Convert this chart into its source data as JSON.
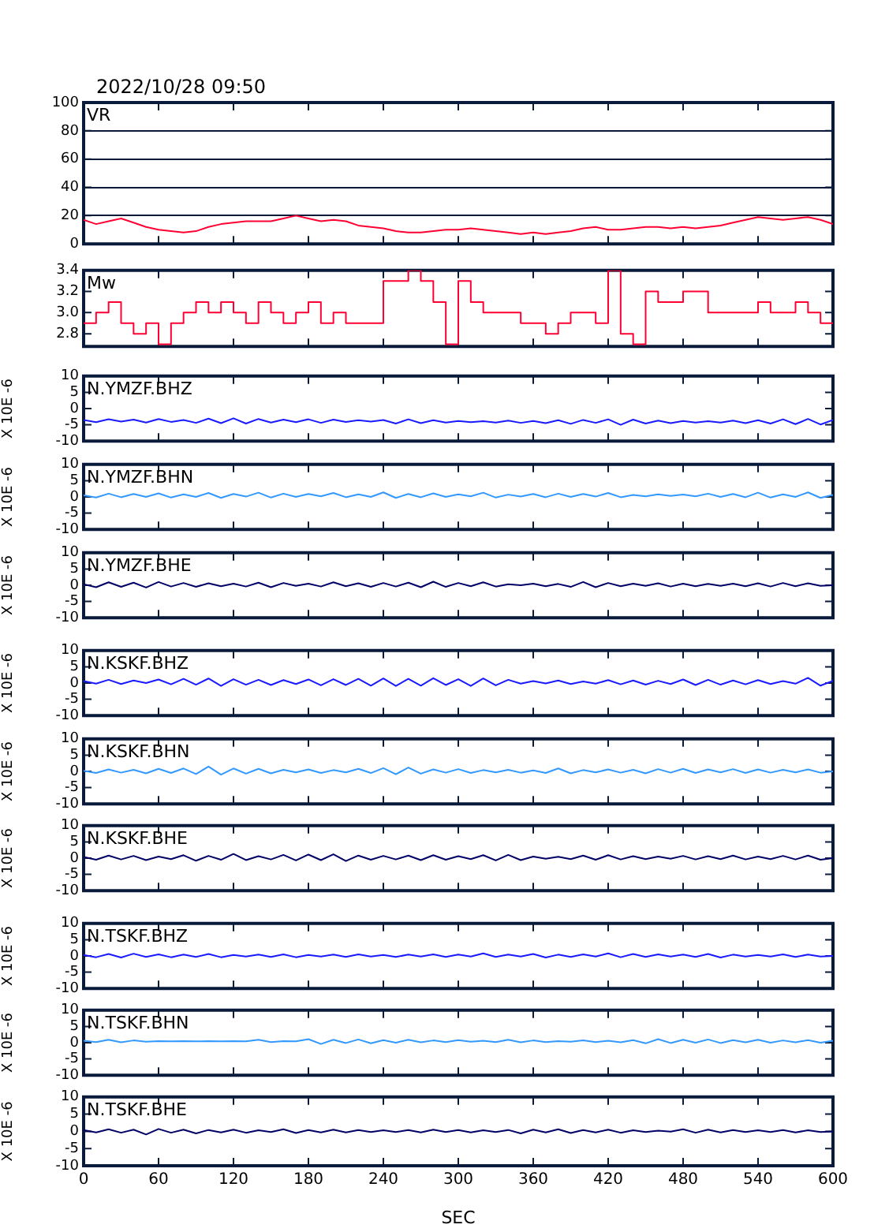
{
  "chart_data": [
    {
      "type": "line",
      "title": "VR",
      "annotations": [
        "2022/10/28 09:50"
      ],
      "x": [
        0,
        10,
        20,
        30,
        40,
        50,
        60,
        70,
        80,
        90,
        100,
        110,
        120,
        130,
        140,
        150,
        160,
        170,
        180,
        190,
        200,
        210,
        220,
        230,
        240,
        250,
        260,
        270,
        280,
        290,
        300,
        310,
        320,
        330,
        340,
        350,
        360,
        370,
        380,
        390,
        400,
        410,
        420,
        430,
        440,
        450,
        460,
        470,
        480,
        490,
        500,
        510,
        520,
        530,
        540,
        550,
        560,
        570,
        580,
        590,
        600
      ],
      "values": [
        17,
        14,
        16,
        18,
        15,
        12,
        10,
        9,
        8,
        9,
        12,
        14,
        15,
        16,
        16,
        16,
        18,
        20,
        18,
        16,
        17,
        16,
        13,
        12,
        11,
        9,
        8,
        8,
        9,
        10,
        10,
        11,
        10,
        9,
        8,
        7,
        8,
        7,
        8,
        9,
        11,
        12,
        10,
        10,
        11,
        12,
        12,
        11,
        12,
        11,
        12,
        13,
        15,
        17,
        19,
        18,
        17,
        18,
        19,
        17,
        14
      ],
      "color": "#ff0033",
      "xlim": [
        0,
        600
      ],
      "xticks": [
        0,
        60,
        120,
        180,
        240,
        300,
        360,
        420,
        480,
        540,
        600
      ],
      "ylim": [
        0,
        100
      ],
      "yticks": [
        0,
        20,
        40,
        60,
        80,
        100
      ],
      "grid": "y",
      "tick_labels": "y"
    },
    {
      "type": "step",
      "title": "Mw",
      "x": [
        0,
        10,
        20,
        30,
        40,
        50,
        60,
        70,
        80,
        90,
        100,
        110,
        120,
        130,
        140,
        150,
        160,
        170,
        180,
        190,
        200,
        210,
        220,
        230,
        240,
        250,
        260,
        270,
        280,
        290,
        300,
        310,
        320,
        330,
        340,
        350,
        360,
        370,
        380,
        390,
        400,
        410,
        420,
        430,
        440,
        450,
        460,
        470,
        480,
        490,
        500,
        510,
        520,
        530,
        540,
        550,
        560,
        570,
        580,
        590,
        600
      ],
      "values": [
        2.9,
        3.0,
        3.1,
        2.9,
        2.8,
        2.9,
        2.7,
        2.9,
        3.0,
        3.1,
        3.0,
        3.1,
        3.0,
        2.9,
        3.1,
        3.0,
        2.9,
        3.0,
        3.1,
        2.9,
        3.0,
        2.9,
        2.9,
        2.9,
        3.3,
        3.3,
        3.4,
        3.3,
        3.1,
        2.7,
        3.3,
        3.1,
        3.0,
        3.0,
        3.0,
        2.9,
        2.9,
        2.8,
        2.9,
        3.0,
        3.0,
        2.9,
        3.4,
        2.8,
        2.7,
        3.2,
        3.1,
        3.1,
        3.2,
        3.2,
        3.0,
        3.0,
        3.0,
        3.0,
        3.1,
        3.0,
        3.0,
        3.1,
        3.0,
        2.9,
        2.9
      ],
      "color": "#ff0033",
      "xlim": [
        0,
        600
      ],
      "xticks": [
        0,
        60,
        120,
        180,
        240,
        300,
        360,
        420,
        480,
        540,
        600
      ],
      "ylim": [
        2.68,
        3.4
      ],
      "yticks": [
        2.8,
        {
          "value": 3,
          "label": "3.0"
        },
        3.2,
        3.4
      ],
      "tick_labels": "y"
    },
    {
      "type": "line",
      "title": "N.YMZF.BHZ",
      "ylabel": "X 10E -6",
      "x": [
        0,
        10,
        20,
        30,
        40,
        50,
        60,
        70,
        80,
        90,
        100,
        110,
        120,
        130,
        140,
        150,
        160,
        170,
        180,
        190,
        200,
        210,
        220,
        230,
        240,
        250,
        260,
        270,
        280,
        290,
        300,
        310,
        320,
        330,
        340,
        350,
        360,
        370,
        380,
        390,
        400,
        410,
        420,
        430,
        440,
        450,
        460,
        470,
        480,
        490,
        500,
        510,
        520,
        530,
        540,
        550,
        560,
        570,
        580,
        590,
        600
      ],
      "values": [
        -3.5,
        -4.2,
        -3.3,
        -4.0,
        -3.4,
        -4.3,
        -3.2,
        -4.1,
        -3.5,
        -4.4,
        -3.1,
        -4.5,
        -3.0,
        -4.6,
        -3.2,
        -4.3,
        -3.4,
        -4.2,
        -3.3,
        -4.4,
        -3.4,
        -4.1,
        -3.6,
        -4.0,
        -3.5,
        -4.6,
        -3.3,
        -4.5,
        -3.6,
        -4.3,
        -3.8,
        -4.2,
        -3.9,
        -4.3,
        -3.7,
        -4.4,
        -3.8,
        -4.5,
        -3.6,
        -4.7,
        -3.5,
        -4.4,
        -3.3,
        -5.0,
        -3.4,
        -4.6,
        -3.7,
        -4.5,
        -3.8,
        -4.3,
        -3.9,
        -4.3,
        -3.7,
        -4.5,
        -3.6,
        -4.6,
        -3.3,
        -4.8,
        -3.2,
        -4.9,
        -3.5
      ],
      "color": "#1a1aff",
      "xlim": [
        0,
        600
      ],
      "xticks": [
        0,
        60,
        120,
        180,
        240,
        300,
        360,
        420,
        480,
        540,
        600
      ],
      "ylim": [
        -10,
        10
      ],
      "yticks": [
        -10,
        -5,
        0,
        5,
        10
      ],
      "tick_labels": "y"
    },
    {
      "type": "line",
      "title": "N.YMZF.BHN",
      "ylabel": "X 10E -6",
      "x": [
        0,
        10,
        20,
        30,
        40,
        50,
        60,
        70,
        80,
        90,
        100,
        110,
        120,
        130,
        140,
        150,
        160,
        170,
        180,
        190,
        200,
        210,
        220,
        230,
        240,
        250,
        260,
        270,
        280,
        290,
        300,
        310,
        320,
        330,
        340,
        350,
        360,
        370,
        380,
        390,
        400,
        410,
        420,
        430,
        440,
        450,
        460,
        470,
        480,
        490,
        500,
        510,
        520,
        530,
        540,
        550,
        560,
        570,
        580,
        590,
        600
      ],
      "values": [
        0.5,
        -0.2,
        1.0,
        -0.1,
        0.9,
        0.0,
        1.1,
        -0.2,
        0.8,
        0.0,
        1.2,
        -0.3,
        0.9,
        0.1,
        1.3,
        -0.2,
        1.0,
        0.0,
        0.9,
        0.2,
        1.2,
        -0.1,
        0.8,
        0.0,
        1.4,
        -0.3,
        0.9,
        -0.1,
        1.1,
        0.0,
        0.8,
        0.2,
        1.3,
        -0.2,
        0.7,
        0.1,
        0.9,
        -0.1,
        1.0,
        0.0,
        0.9,
        0.1,
        1.2,
        -0.1,
        0.6,
        0.2,
        0.8,
        0.3,
        0.7,
        0.2,
        1.0,
        0.0,
        0.9,
        -0.1,
        1.3,
        -0.2,
        0.8,
        0.0,
        1.4,
        -0.3,
        0.6
      ],
      "color": "#3399ff",
      "xlim": [
        0,
        600
      ],
      "xticks": [
        0,
        60,
        120,
        180,
        240,
        300,
        360,
        420,
        480,
        540,
        600
      ],
      "ylim": [
        -10,
        10
      ],
      "yticks": [
        -10,
        -5,
        0,
        5,
        10
      ],
      "tick_labels": "y"
    },
    {
      "type": "line",
      "title": "N.YMZF.BHE",
      "ylabel": "X 10E -6",
      "x": [
        0,
        10,
        20,
        30,
        40,
        50,
        60,
        70,
        80,
        90,
        100,
        110,
        120,
        130,
        140,
        150,
        160,
        170,
        180,
        190,
        200,
        210,
        220,
        230,
        240,
        250,
        260,
        270,
        280,
        290,
        300,
        310,
        320,
        330,
        340,
        350,
        360,
        370,
        380,
        390,
        400,
        410,
        420,
        430,
        440,
        450,
        460,
        470,
        480,
        490,
        500,
        510,
        520,
        530,
        540,
        550,
        560,
        570,
        580,
        590,
        600
      ],
      "values": [
        0.3,
        -0.6,
        0.9,
        -0.5,
        0.8,
        -0.7,
        1.0,
        -0.4,
        0.7,
        -0.5,
        0.6,
        -0.3,
        0.5,
        -0.4,
        0.8,
        -0.6,
        0.7,
        -0.2,
        0.5,
        -0.4,
        0.9,
        -0.3,
        0.6,
        -0.5,
        0.7,
        -0.4,
        0.8,
        -0.6,
        1.1,
        -0.5,
        0.7,
        -0.3,
        0.9,
        -0.4,
        0.3,
        0.0,
        0.5,
        -0.3,
        0.4,
        -0.5,
        1.0,
        -0.6,
        0.7,
        -0.3,
        0.5,
        -0.2,
        0.6,
        -0.4,
        0.5,
        -0.3,
        0.4,
        -0.2,
        0.5,
        -0.3,
        0.6,
        -0.4,
        0.7,
        -0.3,
        0.6,
        -0.2,
        0.0
      ],
      "color": "#000066",
      "xlim": [
        0,
        600
      ],
      "xticks": [
        0,
        60,
        120,
        180,
        240,
        300,
        360,
        420,
        480,
        540,
        600
      ],
      "ylim": [
        -10,
        10
      ],
      "yticks": [
        -10,
        -5,
        0,
        5,
        10
      ],
      "tick_labels": "y"
    },
    {
      "type": "line",
      "title": "N.KSKF.BHZ",
      "ylabel": "X 10E -6",
      "x": [
        0,
        10,
        20,
        30,
        40,
        50,
        60,
        70,
        80,
        90,
        100,
        110,
        120,
        130,
        140,
        150,
        160,
        170,
        180,
        190,
        200,
        210,
        220,
        230,
        240,
        250,
        260,
        270,
        280,
        290,
        300,
        310,
        320,
        330,
        340,
        350,
        360,
        370,
        380,
        390,
        400,
        410,
        420,
        430,
        440,
        450,
        460,
        470,
        480,
        490,
        500,
        510,
        520,
        530,
        540,
        550,
        560,
        570,
        580,
        590,
        600
      ],
      "values": [
        0.6,
        -0.2,
        1.0,
        -0.3,
        0.8,
        0.0,
        1.1,
        -0.4,
        1.3,
        -0.5,
        1.4,
        -0.9,
        1.2,
        -0.5,
        1.0,
        -0.6,
        0.9,
        -0.3,
        1.1,
        -0.7,
        1.2,
        -0.6,
        1.3,
        -0.8,
        1.4,
        -0.9,
        1.3,
        -0.8,
        1.5,
        -0.6,
        1.2,
        -0.9,
        1.4,
        -0.7,
        1.0,
        -0.2,
        0.6,
        -0.1,
        0.8,
        -0.3,
        0.5,
        -0.2,
        0.9,
        -0.4,
        0.8,
        -0.5,
        0.7,
        -0.3,
        1.1,
        -0.6,
        1.0,
        -0.5,
        0.8,
        -0.4,
        0.9,
        -0.3,
        0.6,
        -0.2,
        1.6,
        -0.8,
        0.7
      ],
      "color": "#1a1aff",
      "xlim": [
        0,
        600
      ],
      "xticks": [
        0,
        60,
        120,
        180,
        240,
        300,
        360,
        420,
        480,
        540,
        600
      ],
      "ylim": [
        -10,
        10
      ],
      "yticks": [
        -10,
        -5,
        0,
        5,
        10
      ],
      "tick_labels": "y"
    },
    {
      "type": "line",
      "title": "N.KSKF.BHN",
      "ylabel": "X 10E -6",
      "x": [
        0,
        10,
        20,
        30,
        40,
        50,
        60,
        70,
        80,
        90,
        100,
        110,
        120,
        130,
        140,
        150,
        160,
        170,
        180,
        190,
        200,
        210,
        220,
        230,
        240,
        250,
        260,
        270,
        280,
        290,
        300,
        310,
        320,
        330,
        340,
        350,
        360,
        370,
        380,
        390,
        400,
        410,
        420,
        430,
        440,
        450,
        460,
        470,
        480,
        490,
        500,
        510,
        520,
        530,
        540,
        550,
        560,
        570,
        580,
        590,
        600
      ],
      "values": [
        0.2,
        -0.5,
        0.6,
        -0.4,
        0.5,
        -0.6,
        0.8,
        -0.5,
        0.9,
        -0.8,
        1.5,
        -1.0,
        0.9,
        -0.7,
        0.8,
        -0.6,
        0.5,
        -0.3,
        0.6,
        -0.5,
        0.4,
        -0.3,
        0.8,
        -0.5,
        1.0,
        -0.9,
        1.2,
        -0.7,
        0.6,
        -0.4,
        0.7,
        -0.5,
        0.4,
        -0.3,
        0.5,
        -0.4,
        0.3,
        -0.5,
        0.9,
        -0.6,
        0.4,
        -0.3,
        0.6,
        -0.4,
        0.5,
        -0.6,
        0.7,
        -0.4,
        0.8,
        -0.5,
        0.6,
        -0.3,
        0.7,
        -0.5,
        0.6,
        -0.4,
        0.5,
        -0.3,
        0.6,
        -0.4,
        0.0
      ],
      "color": "#3399ff",
      "xlim": [
        0,
        600
      ],
      "xticks": [
        0,
        60,
        120,
        180,
        240,
        300,
        360,
        420,
        480,
        540,
        600
      ],
      "ylim": [
        -10,
        10
      ],
      "yticks": [
        -10,
        -5,
        0,
        5,
        10
      ],
      "tick_labels": "y"
    },
    {
      "type": "line",
      "title": "N.KSKF.BHE",
      "ylabel": "X 10E -6",
      "x": [
        0,
        10,
        20,
        30,
        40,
        50,
        60,
        70,
        80,
        90,
        100,
        110,
        120,
        130,
        140,
        150,
        160,
        170,
        180,
        190,
        200,
        210,
        220,
        230,
        240,
        250,
        260,
        270,
        280,
        290,
        300,
        310,
        320,
        330,
        340,
        350,
        360,
        370,
        380,
        390,
        400,
        410,
        420,
        430,
        440,
        450,
        460,
        470,
        480,
        490,
        500,
        510,
        520,
        530,
        540,
        550,
        560,
        570,
        580,
        590,
        600
      ],
      "values": [
        0.4,
        -0.5,
        0.8,
        -0.4,
        0.7,
        -0.6,
        0.5,
        -0.3,
        0.9,
        -0.8,
        0.7,
        -0.5,
        1.3,
        -0.6,
        0.6,
        -0.4,
        1.0,
        -0.7,
        1.1,
        -0.6,
        1.2,
        -0.9,
        0.8,
        -0.5,
        0.7,
        -0.4,
        0.8,
        -0.6,
        0.9,
        -0.5,
        0.6,
        -0.3,
        0.9,
        -0.7,
        1.0,
        -0.6,
        0.5,
        -0.2,
        0.4,
        -0.3,
        0.8,
        -0.5,
        0.9,
        -0.4,
        0.6,
        -0.3,
        0.5,
        -0.2,
        0.7,
        -0.4,
        0.6,
        -0.3,
        0.8,
        -0.4,
        0.5,
        -0.3,
        0.7,
        -0.4,
        0.8,
        -0.5,
        0.0
      ],
      "color": "#000066",
      "xlim": [
        0,
        600
      ],
      "xticks": [
        0,
        60,
        120,
        180,
        240,
        300,
        360,
        420,
        480,
        540,
        600
      ],
      "ylim": [
        -10,
        10
      ],
      "yticks": [
        -10,
        -5,
        0,
        5,
        10
      ],
      "tick_labels": "y"
    },
    {
      "type": "line",
      "title": "N.TSKF.BHZ",
      "ylabel": "X 10E -6",
      "x": [
        0,
        10,
        20,
        30,
        40,
        50,
        60,
        70,
        80,
        90,
        100,
        110,
        120,
        130,
        140,
        150,
        160,
        170,
        180,
        190,
        200,
        210,
        220,
        230,
        240,
        250,
        260,
        270,
        280,
        290,
        300,
        310,
        320,
        330,
        340,
        350,
        360,
        370,
        380,
        390,
        400,
        410,
        420,
        430,
        440,
        450,
        460,
        470,
        480,
        490,
        500,
        510,
        520,
        530,
        540,
        550,
        560,
        570,
        580,
        590,
        600
      ],
      "values": [
        0.3,
        -0.4,
        0.6,
        -0.5,
        0.7,
        -0.3,
        0.5,
        -0.4,
        0.4,
        -0.3,
        0.6,
        -0.4,
        0.3,
        -0.2,
        0.4,
        -0.3,
        0.5,
        -0.4,
        0.3,
        -0.2,
        0.4,
        -0.3,
        0.5,
        -0.2,
        0.3,
        -0.3,
        0.4,
        -0.2,
        0.5,
        -0.3,
        0.4,
        -0.2,
        0.8,
        -0.3,
        0.4,
        -0.2,
        0.6,
        -0.5,
        0.4,
        -0.3,
        0.5,
        -0.2,
        0.8,
        -0.4,
        0.6,
        -0.3,
        0.5,
        -0.2,
        0.4,
        -0.3,
        0.6,
        -0.5,
        0.4,
        -0.2,
        0.3,
        -0.2,
        0.5,
        -0.3,
        0.4,
        -0.2,
        0.0
      ],
      "color": "#1a1aff",
      "xlim": [
        0,
        600
      ],
      "xticks": [
        0,
        60,
        120,
        180,
        240,
        300,
        360,
        420,
        480,
        540,
        600
      ],
      "ylim": [
        -10,
        10
      ],
      "yticks": [
        -10,
        -5,
        0,
        5,
        10
      ],
      "tick_labels": "y"
    },
    {
      "type": "line",
      "title": "N.TSKF.BHN",
      "ylabel": "X 10E -6",
      "x": [
        0,
        10,
        20,
        30,
        40,
        50,
        60,
        70,
        80,
        90,
        100,
        110,
        120,
        130,
        140,
        150,
        160,
        170,
        180,
        190,
        200,
        210,
        220,
        230,
        240,
        250,
        260,
        270,
        280,
        290,
        300,
        310,
        320,
        330,
        340,
        350,
        360,
        370,
        380,
        390,
        400,
        410,
        420,
        430,
        440,
        450,
        460,
        470,
        480,
        490,
        500,
        510,
        520,
        530,
        540,
        550,
        560,
        570,
        580,
        590,
        600
      ],
      "values": [
        0.6,
        0.2,
        0.9,
        0.1,
        0.7,
        0.3,
        0.5,
        0.4,
        0.5,
        0.4,
        0.5,
        0.4,
        0.5,
        0.4,
        0.9,
        0.2,
        0.5,
        0.4,
        1.1,
        -0.4,
        0.9,
        -0.1,
        1.0,
        -0.2,
        0.8,
        0.0,
        0.9,
        0.1,
        0.7,
        0.2,
        0.8,
        0.3,
        0.6,
        0.2,
        0.9,
        0.1,
        0.7,
        0.2,
        0.5,
        0.3,
        0.7,
        0.2,
        0.6,
        0.1,
        0.8,
        -0.2,
        1.1,
        -0.1,
        0.9,
        0.0,
        1.0,
        -0.1,
        0.8,
        0.1,
        0.9,
        0.0,
        0.7,
        0.1,
        0.8,
        0.0,
        0.6
      ],
      "color": "#3399ff",
      "xlim": [
        0,
        600
      ],
      "xticks": [
        0,
        60,
        120,
        180,
        240,
        300,
        360,
        420,
        480,
        540,
        600
      ],
      "ylim": [
        -10,
        10
      ],
      "yticks": [
        -10,
        -5,
        0,
        5,
        10
      ],
      "tick_labels": "y"
    },
    {
      "type": "line",
      "title": "N.TSKF.BHE",
      "ylabel": "X 10E -6",
      "xlabel": "SEC",
      "x": [
        0,
        10,
        20,
        30,
        40,
        50,
        60,
        70,
        80,
        90,
        100,
        110,
        120,
        130,
        140,
        150,
        160,
        170,
        180,
        190,
        200,
        210,
        220,
        230,
        240,
        250,
        260,
        270,
        280,
        290,
        300,
        310,
        320,
        330,
        340,
        350,
        360,
        370,
        380,
        390,
        400,
        410,
        420,
        430,
        440,
        450,
        460,
        470,
        480,
        490,
        500,
        510,
        520,
        530,
        540,
        550,
        560,
        570,
        580,
        590,
        600
      ],
      "values": [
        0.4,
        -0.3,
        0.6,
        -0.4,
        0.5,
        -0.9,
        0.7,
        -0.4,
        0.5,
        -0.6,
        0.4,
        -0.3,
        0.5,
        -0.4,
        0.3,
        -0.2,
        0.6,
        -0.5,
        0.4,
        -0.3,
        0.5,
        -0.3,
        0.4,
        -0.2,
        0.3,
        -0.2,
        0.4,
        -0.3,
        0.5,
        -0.2,
        0.4,
        -0.3,
        0.3,
        -0.2,
        0.4,
        -0.6,
        0.5,
        -0.3,
        0.6,
        -0.5,
        0.4,
        -0.3,
        0.5,
        -0.4,
        0.3,
        -0.2,
        0.2,
        -0.1,
        0.6,
        -0.4,
        0.5,
        -0.3,
        0.4,
        -0.2,
        0.3,
        -0.2,
        0.4,
        -0.3,
        0.3,
        -0.2,
        0.0
      ],
      "color": "#000066",
      "xlim": [
        0,
        600
      ],
      "xticks": [
        0,
        60,
        120,
        180,
        240,
        300,
        360,
        420,
        480,
        540,
        600
      ],
      "ylim": [
        -10,
        10
      ],
      "yticks": [
        -10,
        -5,
        0,
        5,
        10
      ]
    }
  ]
}
